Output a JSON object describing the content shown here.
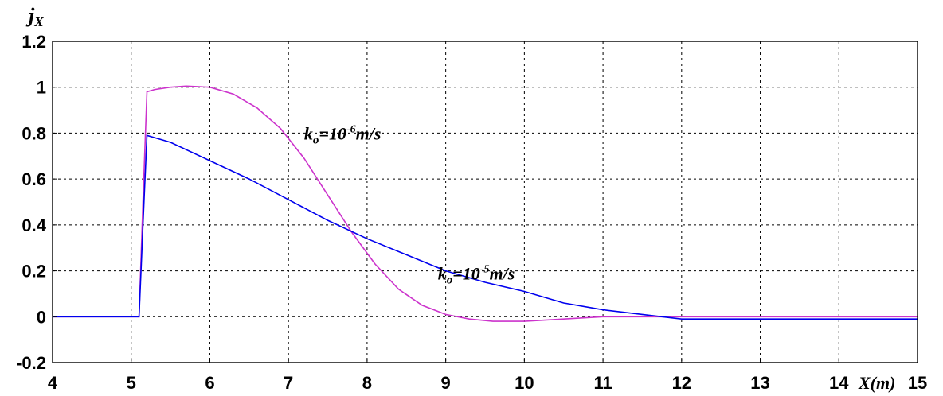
{
  "chart_data": {
    "type": "line",
    "ylabel": "j",
    "ylabel_sub": "X",
    "xlabel": "X(m)",
    "xlim": [
      4,
      15
    ],
    "ylim": [
      -0.2,
      1.2
    ],
    "x_ticks": [
      4,
      5,
      6,
      7,
      8,
      9,
      10,
      11,
      12,
      13,
      14,
      15
    ],
    "y_ticks": [
      -0.2,
      0,
      0.2,
      0.4,
      0.6,
      0.8,
      1,
      1.2
    ],
    "grid": true,
    "series": [
      {
        "name": "k_o=10^-6 m/s",
        "color": "#cc33cc",
        "x": [
          4,
          5.1,
          5.15,
          5.2,
          5.3,
          5.5,
          5.7,
          6.0,
          6.3,
          6.6,
          6.9,
          7.2,
          7.5,
          7.8,
          8.1,
          8.4,
          8.7,
          9.0,
          9.3,
          9.6,
          10.0,
          10.5,
          11.0,
          12.0,
          13.0,
          14.0,
          15.0
        ],
        "y": [
          0,
          0,
          0.5,
          0.98,
          0.99,
          1.0,
          1.005,
          1.0,
          0.97,
          0.91,
          0.82,
          0.69,
          0.53,
          0.37,
          0.23,
          0.12,
          0.05,
          0.01,
          -0.01,
          -0.02,
          -0.02,
          -0.01,
          0.0,
          0.0,
          0.0,
          0.0,
          0.0
        ]
      },
      {
        "name": "k_o=10^-5 m/s",
        "color": "#0000ee",
        "x": [
          4,
          5.1,
          5.15,
          5.2,
          5.5,
          6.0,
          6.5,
          7.0,
          7.5,
          8.0,
          8.5,
          9.0,
          9.5,
          10.0,
          10.5,
          11.0,
          11.5,
          12.0,
          13.0,
          14.0,
          15.0
        ],
        "y": [
          0,
          0,
          0.4,
          0.79,
          0.76,
          0.68,
          0.6,
          0.51,
          0.42,
          0.34,
          0.27,
          0.2,
          0.15,
          0.11,
          0.06,
          0.03,
          0.01,
          -0.01,
          -0.01,
          -0.01,
          -0.01
        ]
      }
    ],
    "annotations": [
      {
        "base": "k",
        "sub": "o",
        "eq": "=10",
        "sup": "-6",
        "unit": "m/s",
        "x": 7.2,
        "y": 0.8
      },
      {
        "base": "k",
        "sub": "o",
        "eq": "=10",
        "sup": "-5",
        "unit": "m/s",
        "x": 8.9,
        "y": 0.19
      }
    ]
  }
}
